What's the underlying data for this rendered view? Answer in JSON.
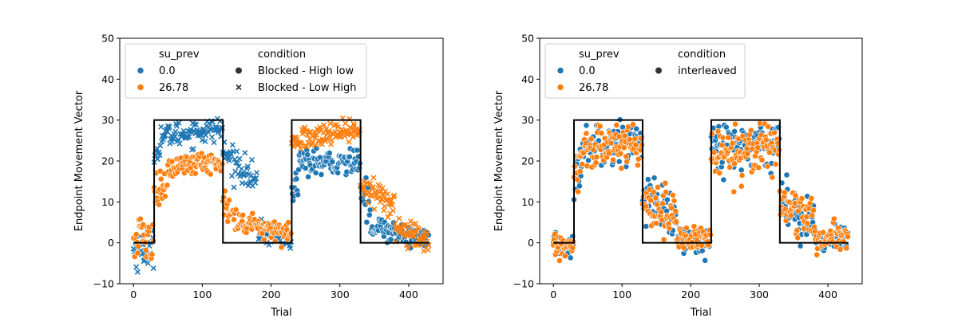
{
  "colors": {
    "blue": "#1f77b4",
    "orange": "#ff7f0e",
    "black": "#000000",
    "legend_marker": "#333333"
  },
  "chart_data": [
    {
      "type": "scatter",
      "xlabel": "Trial",
      "ylabel": "Endpoint Movement Vector",
      "xlim": [
        -20,
        450
      ],
      "ylim": [
        -10,
        50
      ],
      "xticks": [
        0,
        100,
        200,
        300,
        400
      ],
      "yticks": [
        -10,
        0,
        10,
        20,
        30,
        40,
        50
      ],
      "xtick_labels": [
        "0",
        "100",
        "200",
        "300",
        "400"
      ],
      "ytick_labels": [
        "−10",
        "0",
        "10",
        "20",
        "30",
        "40",
        "50"
      ],
      "grid": false,
      "legend": {
        "placement": "top-left",
        "hue_title": "su_prev",
        "hue_entries": [
          {
            "label": "0.0",
            "color": "blue"
          },
          {
            "label": "26.78",
            "color": "orange"
          }
        ],
        "style_title": "condition",
        "style_entries": [
          {
            "label": "Blocked - High low",
            "marker": "circle"
          },
          {
            "label": "Blocked - Low High",
            "marker": "x"
          }
        ]
      },
      "target_line": {
        "x": [
          0,
          30,
          30,
          130,
          130,
          230,
          230,
          330,
          330,
          430
        ],
        "y": [
          0,
          0,
          30,
          30,
          0,
          0,
          30,
          30,
          0,
          0
        ]
      },
      "series": [
        {
          "name": "0.0 / Blocked - Low High",
          "color": "blue",
          "marker": "x",
          "segments": [
            [
              0,
              30,
              -2,
              -1,
              2.5
            ],
            [
              30,
              40,
              20,
              25,
              1.5
            ],
            [
              40,
              130,
              26,
              28,
              1.5
            ],
            [
              130,
              160,
              22,
              18,
              1.8
            ],
            [
              160,
              180,
              18,
              14,
              1.8
            ],
            [
              180,
              230,
              3,
              1,
              1.5
            ]
          ]
        },
        {
          "name": "0.0 / Blocked - High low",
          "color": "blue",
          "marker": "circle",
          "segments": [
            [
              230,
              240,
              12,
              16,
              2
            ],
            [
              240,
              330,
              19,
              20,
              1.5
            ],
            [
              330,
              345,
              15,
              8,
              2.5
            ],
            [
              345,
              430,
              4,
              1,
              1.5
            ]
          ]
        },
        {
          "name": "26.78 / Blocked - High low",
          "color": "orange",
          "marker": "circle",
          "segments": [
            [
              0,
              30,
              0,
              1,
              3
            ],
            [
              30,
              50,
              12,
              16,
              2
            ],
            [
              50,
              130,
              18,
              20,
              1.5
            ],
            [
              130,
              150,
              9,
              6,
              2
            ],
            [
              150,
              230,
              5,
              2,
              1.5
            ]
          ]
        },
        {
          "name": "26.78 / Blocked - Low High",
          "color": "orange",
          "marker": "x",
          "segments": [
            [
              230,
              330,
              25,
              28,
              1.5
            ],
            [
              330,
              380,
              14,
              8,
              2
            ],
            [
              380,
              430,
              3,
              1,
              1.5
            ]
          ]
        }
      ]
    },
    {
      "type": "scatter",
      "xlabel": "Trial",
      "ylabel": "Endpoint Movement Vector",
      "xlim": [
        -20,
        450
      ],
      "ylim": [
        -10,
        50
      ],
      "xticks": [
        0,
        100,
        200,
        300,
        400
      ],
      "yticks": [
        -10,
        0,
        10,
        20,
        30,
        40,
        50
      ],
      "xtick_labels": [
        "0",
        "100",
        "200",
        "300",
        "400"
      ],
      "ytick_labels": [
        "−10",
        "0",
        "10",
        "20",
        "30",
        "40",
        "50"
      ],
      "grid": false,
      "legend": {
        "placement": "top-left",
        "hue_title": "su_prev",
        "hue_entries": [
          {
            "label": "0.0",
            "color": "blue"
          },
          {
            "label": "26.78",
            "color": "orange"
          }
        ],
        "style_title": "condition",
        "style_entries": [
          {
            "label": "interleaved",
            "marker": "circle"
          }
        ]
      },
      "target_line": {
        "x": [
          0,
          30,
          30,
          130,
          130,
          230,
          230,
          330,
          330,
          430
        ],
        "y": [
          0,
          0,
          30,
          30,
          0,
          0,
          30,
          30,
          0,
          0
        ]
      },
      "series": [
        {
          "name": "0.0 / interleaved",
          "color": "blue",
          "marker": "circle",
          "segments": [
            [
              0,
              30,
              -1,
              -1,
              1.5
            ],
            [
              30,
              45,
              15,
              22,
              3
            ],
            [
              45,
              130,
              24,
              25,
              2.5
            ],
            [
              130,
              180,
              12,
              5,
              3
            ],
            [
              180,
              230,
              1,
              1,
              1.5
            ],
            [
              230,
              330,
              23,
              25,
              3
            ],
            [
              330,
              380,
              10,
              5,
              2.5
            ],
            [
              380,
              430,
              1,
              1,
              1.5
            ]
          ]
        },
        {
          "name": "26.78 / interleaved",
          "color": "orange",
          "marker": "circle",
          "segments": [
            [
              0,
              30,
              -1,
              -1,
              1.5
            ],
            [
              30,
              45,
              15,
              22,
              3
            ],
            [
              45,
              130,
              23,
              24,
              2.5
            ],
            [
              130,
              180,
              12,
              5,
              3
            ],
            [
              180,
              230,
              1,
              1,
              1.5
            ],
            [
              230,
              330,
              22,
              24,
              3
            ],
            [
              330,
              380,
              10,
              5,
              2.5
            ],
            [
              380,
              430,
              1,
              1,
              1.5
            ]
          ]
        }
      ]
    }
  ]
}
